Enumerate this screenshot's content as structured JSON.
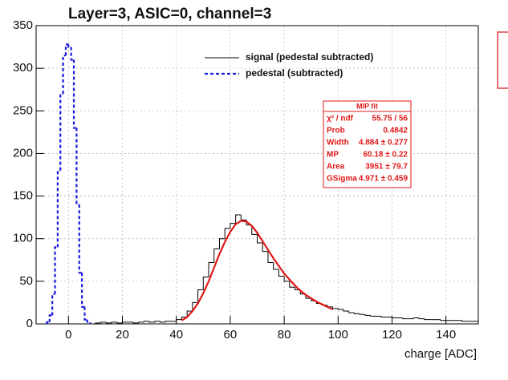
{
  "chart_data": {
    "type": "histogram",
    "title": "Layer=3, ASIC=0, channel=3",
    "x_label": "charge [ADC]",
    "xlim": [
      -12,
      152
    ],
    "ylim": [
      0,
      350
    ],
    "xticks": [
      0,
      20,
      40,
      60,
      80,
      100,
      120,
      140
    ],
    "yticks": [
      0,
      50,
      100,
      150,
      200,
      250,
      300,
      350
    ],
    "grid": true,
    "series": [
      {
        "name": "signal (pedestal subtracted)",
        "color": "#000000",
        "dashed": false,
        "bins": [
          10,
          12,
          14,
          16,
          18,
          20,
          22,
          24,
          26,
          28,
          30,
          32,
          34,
          36,
          38,
          40,
          42,
          44,
          46,
          48,
          50,
          52,
          54,
          56,
          58,
          60,
          62,
          64,
          66,
          68,
          70,
          72,
          74,
          76,
          78,
          80,
          82,
          84,
          86,
          88,
          90,
          92,
          94,
          96,
          98,
          100,
          102,
          104,
          106,
          108,
          110,
          112,
          114,
          116,
          118,
          120,
          122,
          124,
          126,
          128,
          130,
          132,
          134,
          136,
          138,
          140,
          142,
          144,
          146,
          148,
          150,
          152
        ],
        "values": [
          1,
          2,
          1,
          2,
          1,
          2,
          2,
          1,
          2,
          3,
          2,
          3,
          2,
          3,
          3,
          5,
          8,
          15,
          25,
          40,
          55,
          72,
          88,
          100,
          112,
          118,
          128,
          122,
          116,
          105,
          95,
          85,
          72,
          64,
          56,
          50,
          43,
          40,
          35,
          30,
          27,
          24,
          22,
          20,
          18,
          17,
          15,
          13,
          12,
          11,
          10,
          9,
          9,
          8,
          8,
          7,
          7,
          6,
          6,
          7,
          6,
          5,
          5,
          5,
          4,
          4,
          4,
          4,
          3,
          3,
          3
        ]
      },
      {
        "name": "pedestal (subtracted)",
        "color": "#1a1adb",
        "dashed": true,
        "bins": [
          -8,
          -7,
          -6,
          -5,
          -4,
          -3,
          -2,
          -1,
          0,
          1,
          2,
          3,
          4,
          5,
          6,
          7,
          8
        ],
        "values": [
          2,
          10,
          35,
          90,
          180,
          270,
          315,
          328,
          325,
          310,
          230,
          140,
          60,
          20,
          5,
          1
        ]
      }
    ],
    "fit": {
      "color": "#e01818",
      "x": [
        42,
        44,
        46,
        48,
        50,
        52,
        54,
        56,
        58,
        60,
        62,
        64,
        66,
        68,
        70,
        72,
        74,
        76,
        78,
        80,
        82,
        84,
        86,
        88,
        90,
        92,
        94,
        96,
        98
      ],
      "values": [
        4,
        8,
        15,
        24,
        36,
        50,
        66,
        82,
        96,
        108,
        117,
        121,
        120,
        115,
        107,
        97,
        87,
        77,
        68,
        59,
        52,
        45,
        39,
        34,
        30,
        26,
        23,
        20,
        17
      ]
    },
    "stats_box": {
      "title": "MIP fit",
      "rows": [
        [
          "χ² / ndf",
          "55.75 / 56"
        ],
        [
          "Prob",
          "0.4842"
        ],
        [
          "Width",
          "4.884 ± 0.277"
        ],
        [
          "MP",
          "60.18 ± 0.22"
        ],
        [
          "Area",
          "3951 ± 79.7"
        ],
        [
          "GSigma",
          "4.971 ± 0.459"
        ]
      ]
    }
  }
}
